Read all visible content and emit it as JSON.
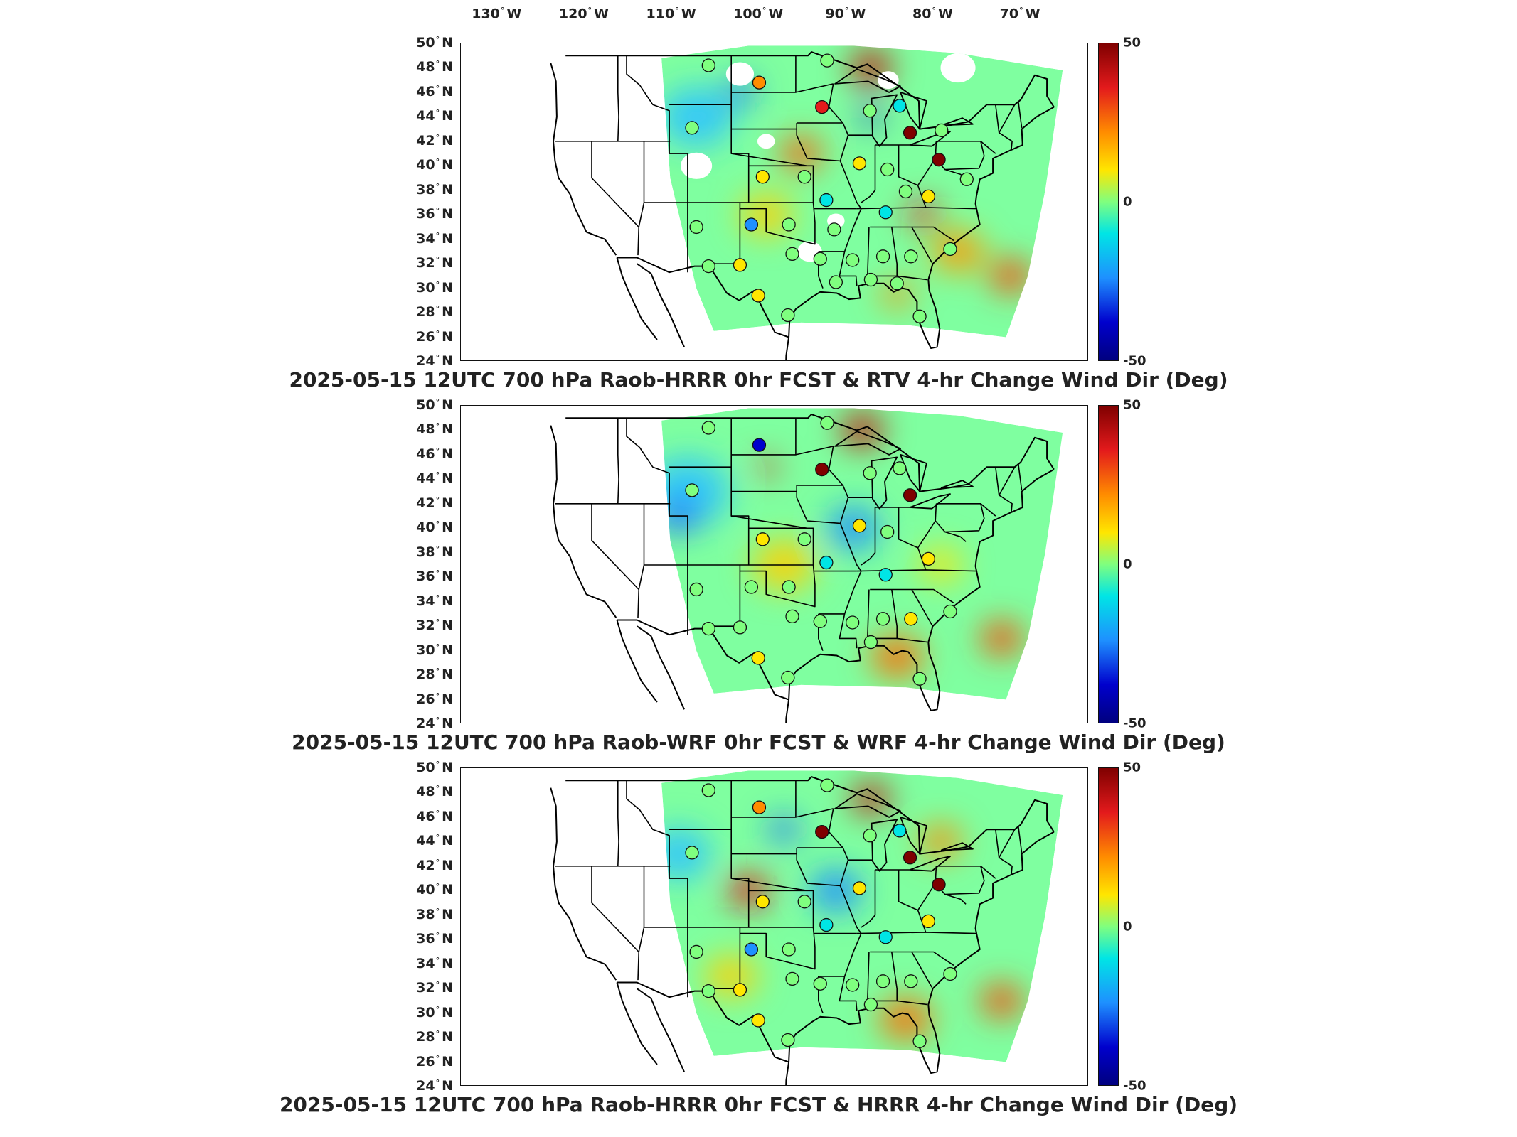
{
  "longitude_labels": [
    {
      "value": "130",
      "dir": "W"
    },
    {
      "value": "120",
      "dir": "W"
    },
    {
      "value": "110",
      "dir": "W"
    },
    {
      "value": "100",
      "dir": "W"
    },
    {
      "value": "90",
      "dir": "W"
    },
    {
      "value": "80",
      "dir": "W"
    },
    {
      "value": "70",
      "dir": "W"
    }
  ],
  "latitude_labels": [
    {
      "value": "50",
      "dir": "N"
    },
    {
      "value": "48",
      "dir": "N"
    },
    {
      "value": "46",
      "dir": "N"
    },
    {
      "value": "44",
      "dir": "N"
    },
    {
      "value": "42",
      "dir": "N"
    },
    {
      "value": "40",
      "dir": "N"
    },
    {
      "value": "38",
      "dir": "N"
    },
    {
      "value": "36",
      "dir": "N"
    },
    {
      "value": "34",
      "dir": "N"
    },
    {
      "value": "32",
      "dir": "N"
    },
    {
      "value": "30",
      "dir": "N"
    },
    {
      "value": "28",
      "dir": "N"
    },
    {
      "value": "26",
      "dir": "N"
    },
    {
      "value": "24",
      "dir": "N"
    }
  ],
  "colorbar": {
    "max_label": "50",
    "mid_label": "0",
    "min_label": "-50",
    "colormap": [
      "#00007f",
      "#0000cd",
      "#1e90ff",
      "#00e5e5",
      "#7fff7f",
      "#ffe600",
      "#ff8c00",
      "#e31a1c",
      "#7f0000"
    ]
  },
  "panels": [
    {
      "caption": "2025-05-15 12UTC 700 hPa Raob-HRRR 0hr FCST & RTV 4-hr Change Wind Dir (Deg)",
      "has_missing_data": true,
      "field_blobs": [
        {
          "color": "#2ec4ff",
          "lon": -108,
          "lat": 44,
          "r": 3.5
        },
        {
          "color": "#ff5a00",
          "lon": -96,
          "lat": 41,
          "r": 2.0
        },
        {
          "color": "#c80000",
          "lon": -88,
          "lat": 48,
          "r": 2.0
        },
        {
          "color": "#ff9a00",
          "lon": -78,
          "lat": 33,
          "r": 2.5
        },
        {
          "color": "#ff4000",
          "lon": -72,
          "lat": 31,
          "r": 2.0
        },
        {
          "color": "#1e6bff",
          "lon": -103,
          "lat": 46,
          "r": 1.5
        },
        {
          "color": "#ffd000",
          "lon": -100,
          "lat": 36,
          "r": 2.5
        },
        {
          "color": "#e31a1c",
          "lon": -82,
          "lat": 36,
          "r": 1.5
        },
        {
          "color": "#0000cd",
          "lon": -88,
          "lat": 44,
          "r": 1.0
        },
        {
          "color": "#ff8c00",
          "lon": -85,
          "lat": 29.5,
          "r": 1.5
        }
      ],
      "stations": [
        {
          "lon": -106.6,
          "lat": 48.2,
          "value": 0
        },
        {
          "lon": -100.8,
          "lat": 46.8,
          "value": 25
        },
        {
          "lon": -93.0,
          "lat": 48.6,
          "value": 0
        },
        {
          "lon": -93.6,
          "lat": 44.8,
          "value": 42
        },
        {
          "lon": -88.1,
          "lat": 44.5,
          "value": 5
        },
        {
          "lon": -84.7,
          "lat": 44.9,
          "value": -12
        },
        {
          "lon": -83.5,
          "lat": 42.7,
          "value": 45
        },
        {
          "lon": -79.9,
          "lat": 42.9,
          "value": 5
        },
        {
          "lon": -80.2,
          "lat": 40.5,
          "value": 45
        },
        {
          "lon": -108.5,
          "lat": 43.1,
          "value": 0
        },
        {
          "lon": -100.4,
          "lat": 39.1,
          "value": 18
        },
        {
          "lon": -95.6,
          "lat": 39.1,
          "value": 3
        },
        {
          "lon": -93.1,
          "lat": 37.2,
          "value": -15
        },
        {
          "lon": -89.3,
          "lat": 40.2,
          "value": 10
        },
        {
          "lon": -86.1,
          "lat": 39.7,
          "value": 5
        },
        {
          "lon": -84.0,
          "lat": 37.9,
          "value": 3
        },
        {
          "lon": -86.3,
          "lat": 36.2,
          "value": -12
        },
        {
          "lon": -81.4,
          "lat": 37.5,
          "value": 8
        },
        {
          "lon": -77.0,
          "lat": 38.9,
          "value": 5
        },
        {
          "lon": -108.0,
          "lat": 35.0,
          "value": 0
        },
        {
          "lon": -101.7,
          "lat": 35.2,
          "value": -25
        },
        {
          "lon": -97.4,
          "lat": 35.2,
          "value": -5
        },
        {
          "lon": -92.2,
          "lat": 34.8,
          "value": 0
        },
        {
          "lon": -106.6,
          "lat": 31.8,
          "value": 0
        },
        {
          "lon": -103.0,
          "lat": 31.9,
          "value": 18
        },
        {
          "lon": -97.0,
          "lat": 32.8,
          "value": 0
        },
        {
          "lon": -93.8,
          "lat": 32.4,
          "value": 2
        },
        {
          "lon": -90.1,
          "lat": 32.3,
          "value": 5
        },
        {
          "lon": -86.6,
          "lat": 32.6,
          "value": 0
        },
        {
          "lon": -83.4,
          "lat": 32.6,
          "value": 5
        },
        {
          "lon": -78.9,
          "lat": 33.2,
          "value": 0
        },
        {
          "lon": -92.0,
          "lat": 30.5,
          "value": 0
        },
        {
          "lon": -88.0,
          "lat": 30.7,
          "value": 0
        },
        {
          "lon": -85.0,
          "lat": 30.4,
          "value": 5
        },
        {
          "lon": -82.4,
          "lat": 27.7,
          "value": 5
        },
        {
          "lon": -97.5,
          "lat": 27.8,
          "value": 0
        },
        {
          "lon": -100.9,
          "lat": 29.4,
          "value": 10
        }
      ]
    },
    {
      "caption": "2025-05-15 12UTC 700 hPa Raob-WRF 0hr FCST & WRF 4-hr Change Wind Dir (Deg)",
      "has_missing_data": false,
      "field_blobs": [
        {
          "color": "#2ec4ff",
          "lon": -109,
          "lat": 43,
          "r": 4.0
        },
        {
          "color": "#1e6bff",
          "lon": -110,
          "lat": 41,
          "r": 2.0
        },
        {
          "color": "#c80000",
          "lon": -89,
          "lat": 48,
          "r": 2.0
        },
        {
          "color": "#ff6a00",
          "lon": -85,
          "lat": 29.5,
          "r": 2.5
        },
        {
          "color": "#ff4000",
          "lon": -73,
          "lat": 31,
          "r": 2.0
        },
        {
          "color": "#ffd000",
          "lon": -98,
          "lat": 37,
          "r": 3.0
        },
        {
          "color": "#1e90ff",
          "lon": -90,
          "lat": 40,
          "r": 2.5
        },
        {
          "color": "#e31a1c",
          "lon": -100,
          "lat": 45,
          "r": 1.0
        },
        {
          "color": "#ffe600",
          "lon": -80,
          "lat": 37,
          "r": 2.0
        }
      ],
      "stations": [
        {
          "lon": -106.6,
          "lat": 48.2,
          "value": 0
        },
        {
          "lon": -100.8,
          "lat": 46.8,
          "value": -35
        },
        {
          "lon": -93.0,
          "lat": 48.6,
          "value": 0
        },
        {
          "lon": -93.6,
          "lat": 44.8,
          "value": 45
        },
        {
          "lon": -88.1,
          "lat": 44.5,
          "value": 5
        },
        {
          "lon": -84.7,
          "lat": 44.9,
          "value": 0
        },
        {
          "lon": -83.5,
          "lat": 42.7,
          "value": 45
        },
        {
          "lon": -108.5,
          "lat": 43.1,
          "value": 0
        },
        {
          "lon": -100.4,
          "lat": 39.1,
          "value": 15
        },
        {
          "lon": -95.6,
          "lat": 39.1,
          "value": 5
        },
        {
          "lon": -93.1,
          "lat": 37.2,
          "value": -15
        },
        {
          "lon": -89.3,
          "lat": 40.2,
          "value": 10
        },
        {
          "lon": -86.1,
          "lat": 39.7,
          "value": 5
        },
        {
          "lon": -86.3,
          "lat": 36.2,
          "value": -10
        },
        {
          "lon": -81.4,
          "lat": 37.5,
          "value": 8
        },
        {
          "lon": -108.0,
          "lat": 35.0,
          "value": 0
        },
        {
          "lon": -101.7,
          "lat": 35.2,
          "value": -5
        },
        {
          "lon": -97.4,
          "lat": 35.2,
          "value": -3
        },
        {
          "lon": -106.6,
          "lat": 31.8,
          "value": 0
        },
        {
          "lon": -103.0,
          "lat": 31.9,
          "value": 5
        },
        {
          "lon": -97.0,
          "lat": 32.8,
          "value": 0
        },
        {
          "lon": -93.8,
          "lat": 32.4,
          "value": 2
        },
        {
          "lon": -90.1,
          "lat": 32.3,
          "value": 5
        },
        {
          "lon": -86.6,
          "lat": 32.6,
          "value": 0
        },
        {
          "lon": -83.4,
          "lat": 32.6,
          "value": 15
        },
        {
          "lon": -78.9,
          "lat": 33.2,
          "value": 0
        },
        {
          "lon": -88.0,
          "lat": 30.7,
          "value": 0
        },
        {
          "lon": -82.4,
          "lat": 27.7,
          "value": 5
        },
        {
          "lon": -97.5,
          "lat": 27.8,
          "value": 0
        },
        {
          "lon": -100.9,
          "lat": 29.4,
          "value": 10
        }
      ]
    },
    {
      "caption": "2025-05-15 12UTC 700 hPa Raob-HRRR 0hr FCST & HRRR 4-hr Change Wind Dir (Deg)",
      "has_missing_data": false,
      "field_blobs": [
        {
          "color": "#2ec4ff",
          "lon": -110,
          "lat": 43,
          "r": 3.0
        },
        {
          "color": "#1e6bff",
          "lon": -98,
          "lat": 45,
          "r": 1.5
        },
        {
          "color": "#e31a1c",
          "lon": -102,
          "lat": 40,
          "r": 2.0
        },
        {
          "color": "#c80000",
          "lon": -88,
          "lat": 47.5,
          "r": 1.8
        },
        {
          "color": "#ff6a00",
          "lon": -84,
          "lat": 29.5,
          "r": 2.5
        },
        {
          "color": "#ff4000",
          "lon": -73,
          "lat": 31,
          "r": 2.0
        },
        {
          "color": "#ffd000",
          "lon": -104,
          "lat": 33,
          "r": 2.5
        },
        {
          "color": "#1e90ff",
          "lon": -92,
          "lat": 40,
          "r": 2.5
        },
        {
          "color": "#ff8c00",
          "lon": -80,
          "lat": 44,
          "r": 2.0
        }
      ],
      "stations": [
        {
          "lon": -106.6,
          "lat": 48.2,
          "value": 0
        },
        {
          "lon": -100.8,
          "lat": 46.8,
          "value": 25
        },
        {
          "lon": -93.0,
          "lat": 48.6,
          "value": 0
        },
        {
          "lon": -93.6,
          "lat": 44.8,
          "value": 45
        },
        {
          "lon": -88.1,
          "lat": 44.5,
          "value": 5
        },
        {
          "lon": -84.7,
          "lat": 44.9,
          "value": -15
        },
        {
          "lon": -83.5,
          "lat": 42.7,
          "value": 45
        },
        {
          "lon": -80.2,
          "lat": 40.5,
          "value": 45
        },
        {
          "lon": -108.5,
          "lat": 43.1,
          "value": 0
        },
        {
          "lon": -100.4,
          "lat": 39.1,
          "value": 18
        },
        {
          "lon": -95.6,
          "lat": 39.1,
          "value": 5
        },
        {
          "lon": -93.1,
          "lat": 37.2,
          "value": -10
        },
        {
          "lon": -89.3,
          "lat": 40.2,
          "value": 10
        },
        {
          "lon": -86.3,
          "lat": 36.2,
          "value": -15
        },
        {
          "lon": -81.4,
          "lat": 37.5,
          "value": 8
        },
        {
          "lon": -108.0,
          "lat": 35.0,
          "value": 0
        },
        {
          "lon": -101.7,
          "lat": 35.2,
          "value": -20
        },
        {
          "lon": -97.4,
          "lat": 35.2,
          "value": -3
        },
        {
          "lon": -106.6,
          "lat": 31.8,
          "value": 0
        },
        {
          "lon": -103.0,
          "lat": 31.9,
          "value": 10
        },
        {
          "lon": -97.0,
          "lat": 32.8,
          "value": 0
        },
        {
          "lon": -93.8,
          "lat": 32.4,
          "value": 2
        },
        {
          "lon": -90.1,
          "lat": 32.3,
          "value": 5
        },
        {
          "lon": -86.6,
          "lat": 32.6,
          "value": 0
        },
        {
          "lon": -83.4,
          "lat": 32.6,
          "value": 5
        },
        {
          "lon": -78.9,
          "lat": 33.2,
          "value": 0
        },
        {
          "lon": -88.0,
          "lat": 30.7,
          "value": 0
        },
        {
          "lon": -82.4,
          "lat": 27.7,
          "value": 5
        },
        {
          "lon": -97.5,
          "lat": 27.8,
          "value": 0
        },
        {
          "lon": -100.9,
          "lat": 29.4,
          "value": 10
        }
      ]
    }
  ]
}
